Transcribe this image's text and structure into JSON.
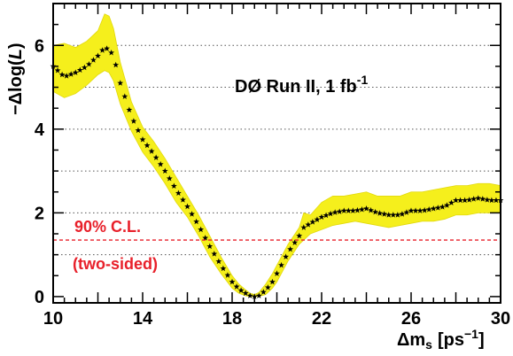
{
  "chart_data": {
    "type": "line",
    "title": "DØ Run II, 1 fb",
    "title_superscript": "-1",
    "xlabel_symbol": "Δm",
    "xlabel_subscript": "s",
    "xlabel_unit": "[ps",
    "xlabel_unit_superscript": "−1",
    "xlabel_close": "]",
    "ylabel": "−Δlog(",
    "ylabel_var": "L",
    "ylabel_close": ")",
    "xlim": [
      10,
      30
    ],
    "ylim": [
      -0.15,
      7.0
    ],
    "x_ticks": [
      "10",
      "14",
      "18",
      "22",
      "26",
      "30"
    ],
    "y_ticks": [
      "0",
      "2",
      "4",
      "6"
    ],
    "grid": "horizontal-dotted",
    "cl_line": {
      "y": 1.35,
      "label_top": "90% C.L.",
      "label_bottom": "(two-sided)",
      "color": "#e8202a"
    },
    "colors": {
      "band": "#f5ef1c",
      "band_edge": "#e2d90c",
      "markers": "#000000",
      "axes": "#000000"
    },
    "series": [
      {
        "marker": "star",
        "x": [
          10.0,
          10.5,
          11.0,
          11.5,
          12.0,
          12.3,
          12.5,
          12.7,
          13.0,
          13.5,
          14.0,
          14.5,
          15.0,
          15.5,
          16.0,
          16.5,
          17.0,
          17.5,
          18.0,
          18.3,
          18.6,
          18.8,
          19.0,
          19.2,
          19.5,
          19.8,
          20.0,
          20.5,
          21.0,
          21.2,
          21.5,
          22.0,
          22.5,
          23.0,
          23.5,
          24.0,
          24.5,
          25.0,
          25.5,
          26.0,
          26.5,
          27.0,
          27.5,
          28.0,
          28.5,
          29.0,
          29.5,
          30.0
        ],
        "y": [
          5.5,
          5.25,
          5.35,
          5.5,
          5.75,
          5.95,
          5.9,
          5.75,
          5.1,
          4.3,
          3.75,
          3.4,
          3.0,
          2.55,
          2.15,
          1.7,
          1.2,
          0.75,
          0.35,
          0.18,
          0.08,
          0.02,
          0.0,
          0.02,
          0.15,
          0.35,
          0.55,
          1.05,
          1.45,
          1.65,
          1.75,
          1.9,
          2.0,
          2.05,
          2.05,
          2.1,
          2.0,
          1.95,
          1.95,
          2.05,
          2.05,
          2.1,
          2.15,
          2.3,
          2.3,
          2.35,
          2.3,
          2.3
        ],
        "band_upper": [
          6.0,
          6.05,
          5.95,
          6.1,
          6.35,
          6.75,
          6.7,
          6.4,
          5.6,
          4.65,
          4.05,
          3.7,
          3.3,
          2.85,
          2.4,
          1.95,
          1.45,
          0.95,
          0.5,
          0.3,
          0.16,
          0.08,
          0.05,
          0.1,
          0.3,
          0.55,
          0.75,
          1.25,
          1.65,
          2.0,
          1.95,
          2.25,
          2.4,
          2.4,
          2.45,
          2.5,
          2.4,
          2.4,
          2.4,
          2.5,
          2.5,
          2.55,
          2.6,
          2.65,
          2.65,
          2.7,
          2.7,
          2.65
        ],
        "band_lower": [
          4.9,
          4.75,
          4.85,
          5.05,
          5.3,
          5.4,
          5.35,
          5.15,
          4.6,
          3.95,
          3.45,
          3.1,
          2.7,
          2.25,
          1.9,
          1.45,
          0.95,
          0.55,
          0.2,
          0.08,
          0.02,
          0.0,
          0.0,
          0.0,
          0.05,
          0.2,
          0.35,
          0.85,
          1.25,
          1.35,
          1.5,
          1.6,
          1.7,
          1.75,
          1.8,
          1.75,
          1.7,
          1.65,
          1.7,
          1.75,
          1.8,
          1.8,
          1.85,
          1.95,
          1.95,
          2.0,
          2.0,
          2.0
        ]
      }
    ]
  }
}
